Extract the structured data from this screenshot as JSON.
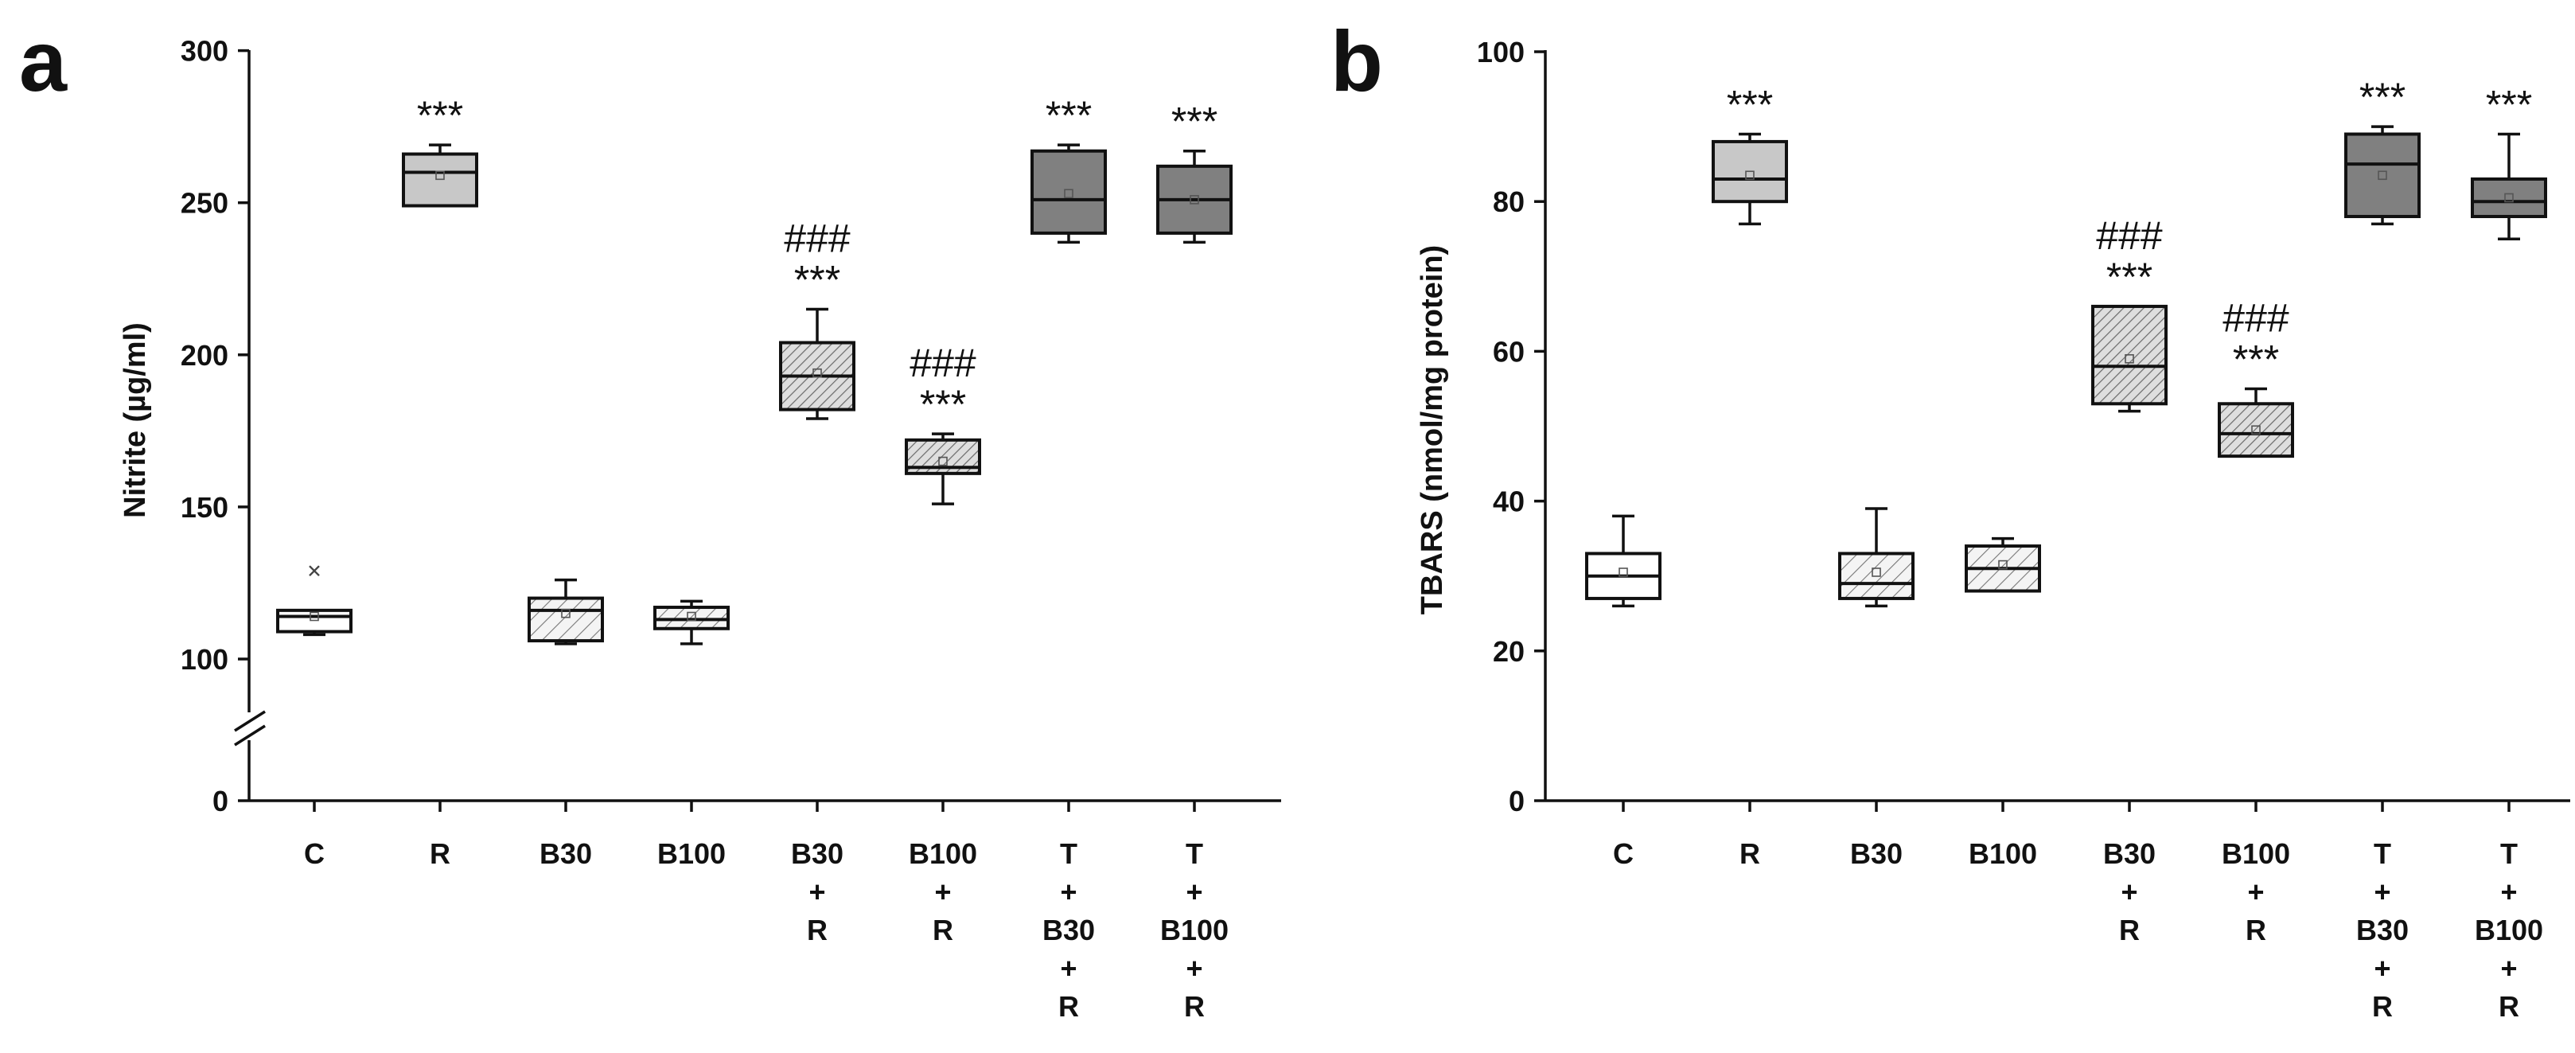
{
  "colors": {
    "white": "#ffffff",
    "light": "#c8c8c8",
    "hatch": "#eaeaea",
    "hatch_dense": "#d9d9d9",
    "dark": "#808080",
    "line": "#111111"
  },
  "chart_data": [
    {
      "panel": "a",
      "type": "box",
      "ylabel": "Nitrite (µg/ml)",
      "axis_break": {
        "from": 0,
        "to": 100
      },
      "yticks": [
        0,
        100,
        150,
        200,
        250,
        300
      ],
      "ylim_upper": [
        100,
        300
      ],
      "categories": [
        {
          "lines": [
            "C"
          ],
          "fill": "white"
        },
        {
          "lines": [
            "R"
          ],
          "fill": "light"
        },
        {
          "lines": [
            "B30"
          ],
          "fill": "hatch"
        },
        {
          "lines": [
            "B100"
          ],
          "fill": "hatch"
        },
        {
          "lines": [
            "B30",
            "+",
            "R"
          ],
          "fill": "hatch_dense"
        },
        {
          "lines": [
            "B100",
            "+",
            "R"
          ],
          "fill": "hatch_dense"
        },
        {
          "lines": [
            "T",
            "+",
            "B30",
            "+",
            "R"
          ],
          "fill": "dark"
        },
        {
          "lines": [
            "T",
            "+",
            "B100",
            "+",
            "R"
          ],
          "fill": "dark"
        }
      ],
      "boxes": [
        {
          "min": 108,
          "q1": 109,
          "median": 114,
          "q3": 116,
          "max": 116,
          "mean": 114,
          "outliers": [
            129
          ]
        },
        {
          "min": 249,
          "q1": 249,
          "median": 260,
          "q3": 266,
          "max": 269,
          "mean": 259,
          "outliers": []
        },
        {
          "min": 105,
          "q1": 106,
          "median": 116,
          "q3": 120,
          "max": 126,
          "mean": 115,
          "outliers": []
        },
        {
          "min": 105,
          "q1": 110,
          "median": 113,
          "q3": 117,
          "max": 119,
          "mean": 114,
          "outliers": []
        },
        {
          "min": 179,
          "q1": 182,
          "median": 193,
          "q3": 204,
          "max": 215,
          "mean": 194,
          "outliers": []
        },
        {
          "min": 151,
          "q1": 161,
          "median": 163,
          "q3": 172,
          "max": 174,
          "mean": 165,
          "outliers": []
        },
        {
          "min": 237,
          "q1": 240,
          "median": 251,
          "q3": 267,
          "max": 269,
          "mean": 253,
          "outliers": []
        },
        {
          "min": 237,
          "q1": 240,
          "median": 251,
          "q3": 262,
          "max": 267,
          "mean": 251,
          "outliers": []
        }
      ],
      "significance": [
        [],
        [
          "***"
        ],
        [],
        [],
        [
          "###",
          "***"
        ],
        [
          "###",
          "***"
        ],
        [
          "***"
        ],
        [
          "***"
        ]
      ]
    },
    {
      "panel": "b",
      "type": "box",
      "ylabel": "TBARS (nmol/mg protein)",
      "yticks": [
        0,
        20,
        40,
        60,
        80,
        100
      ],
      "ylim": [
        0,
        100
      ],
      "categories": [
        {
          "lines": [
            "C"
          ],
          "fill": "white"
        },
        {
          "lines": [
            "R"
          ],
          "fill": "light"
        },
        {
          "lines": [
            "B30"
          ],
          "fill": "hatch"
        },
        {
          "lines": [
            "B100"
          ],
          "fill": "hatch"
        },
        {
          "lines": [
            "B30",
            "+",
            "R"
          ],
          "fill": "hatch_dense"
        },
        {
          "lines": [
            "B100",
            "+",
            "R"
          ],
          "fill": "hatch_dense"
        },
        {
          "lines": [
            "T",
            "+",
            "B30",
            "+",
            "R"
          ],
          "fill": "dark"
        },
        {
          "lines": [
            "T",
            "+",
            "B100",
            "+",
            "R"
          ],
          "fill": "dark"
        }
      ],
      "boxes": [
        {
          "min": 26,
          "q1": 27,
          "median": 30,
          "q3": 33,
          "max": 38,
          "mean": 30.5,
          "outliers": []
        },
        {
          "min": 77,
          "q1": 80,
          "median": 83,
          "q3": 88,
          "max": 89,
          "mean": 83.5,
          "outliers": []
        },
        {
          "min": 26,
          "q1": 27,
          "median": 29,
          "q3": 33,
          "max": 39,
          "mean": 30.5,
          "outliers": []
        },
        {
          "min": 28,
          "q1": 28,
          "median": 31,
          "q3": 34,
          "max": 35,
          "mean": 31.5,
          "outliers": []
        },
        {
          "min": 52,
          "q1": 53,
          "median": 58,
          "q3": 66,
          "max": 66,
          "mean": 59,
          "outliers": []
        },
        {
          "min": 46,
          "q1": 46,
          "median": 49,
          "q3": 53,
          "max": 55,
          "mean": 49.5,
          "outliers": []
        },
        {
          "min": 77,
          "q1": 78,
          "median": 85,
          "q3": 89,
          "max": 90,
          "mean": 83.5,
          "outliers": []
        },
        {
          "min": 75,
          "q1": 78,
          "median": 80,
          "q3": 83,
          "max": 89,
          "mean": 80.5,
          "outliers": []
        }
      ],
      "significance": [
        [],
        [
          "***"
        ],
        [],
        [],
        [
          "###",
          "***"
        ],
        [
          "###",
          "***"
        ],
        [
          "***"
        ],
        [
          "***"
        ]
      ]
    }
  ]
}
